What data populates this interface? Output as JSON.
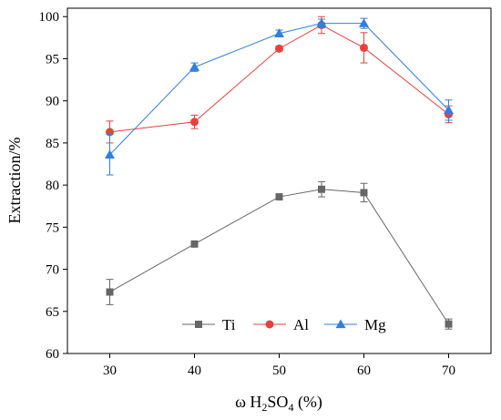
{
  "chart_data": {
    "type": "line",
    "title": "",
    "xlabel": {
      "prefix": "ω H",
      "sub1": "2",
      "mid": "SO",
      "sub2": "4",
      "suffix": " (%)"
    },
    "ylabel": "Extraction/%",
    "xlim": [
      25,
      75
    ],
    "ylim": [
      60,
      101
    ],
    "xticks": [
      30,
      40,
      50,
      60,
      70
    ],
    "yticks": [
      60,
      65,
      70,
      75,
      80,
      85,
      90,
      95,
      100
    ],
    "grid": false,
    "legend_position": "bottom-center",
    "x": [
      30,
      40,
      50,
      55,
      60,
      70
    ],
    "series": [
      {
        "name": "Ti",
        "color": "#666666",
        "marker": "square",
        "values": [
          67.3,
          73.0,
          78.6,
          79.5,
          79.1,
          63.5
        ],
        "errors": [
          1.5,
          0.3,
          0.3,
          0.9,
          1.1,
          0.6
        ]
      },
      {
        "name": "Al",
        "color": "#e8413c",
        "marker": "circle",
        "values": [
          86.3,
          87.5,
          96.2,
          99.0,
          96.3,
          88.4
        ],
        "errors": [
          1.3,
          0.8,
          0.3,
          1.0,
          1.8,
          1.0
        ]
      },
      {
        "name": "Mg",
        "color": "#2f7fe0",
        "marker": "triangle",
        "values": [
          83.6,
          94.0,
          98.0,
          99.2,
          99.2,
          88.9
        ],
        "errors": [
          2.4,
          0.5,
          0.4,
          0.5,
          0.6,
          1.2
        ]
      }
    ]
  }
}
